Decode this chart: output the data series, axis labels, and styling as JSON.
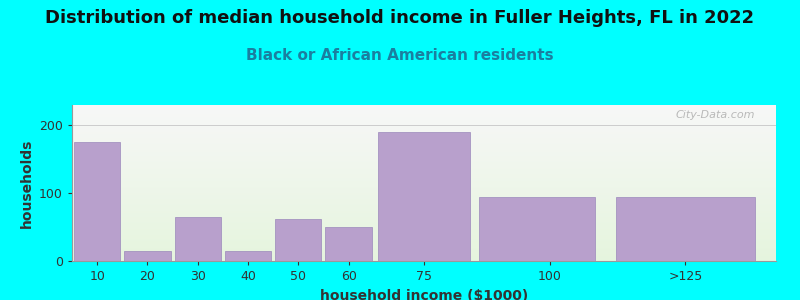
{
  "title": "Distribution of median household income in Fuller Heights, FL in 2022",
  "subtitle": "Black or African American residents",
  "xlabel": "household income ($1000)",
  "ylabel": "households",
  "background_color": "#00FFFF",
  "bar_color": "#b8a0cc",
  "bar_edge_color": "#9b88bb",
  "categories": [
    "10",
    "20",
    "30",
    "40",
    "50",
    "60",
    "75",
    "100",
    ">125"
  ],
  "values": [
    175,
    15,
    65,
    15,
    62,
    50,
    190,
    95,
    95
  ],
  "bar_lefts": [
    5,
    15,
    25,
    35,
    45,
    55,
    65,
    85,
    112
  ],
  "bar_widths": [
    10,
    10,
    10,
    10,
    10,
    10,
    20,
    25,
    30
  ],
  "xtick_positions": [
    10,
    20,
    30,
    40,
    50,
    60,
    75,
    100
  ],
  "xtick_labels": [
    "10",
    "20",
    "30",
    "40",
    "50",
    "60",
    "75",
    "100"
  ],
  "xlim": [
    5,
    145
  ],
  "yticks": [
    0,
    100,
    200
  ],
  "ylim": [
    0,
    230
  ],
  "title_fontsize": 13,
  "subtitle_fontsize": 11,
  "axis_label_fontsize": 10,
  "tick_fontsize": 9,
  "watermark": "City-Data.com"
}
